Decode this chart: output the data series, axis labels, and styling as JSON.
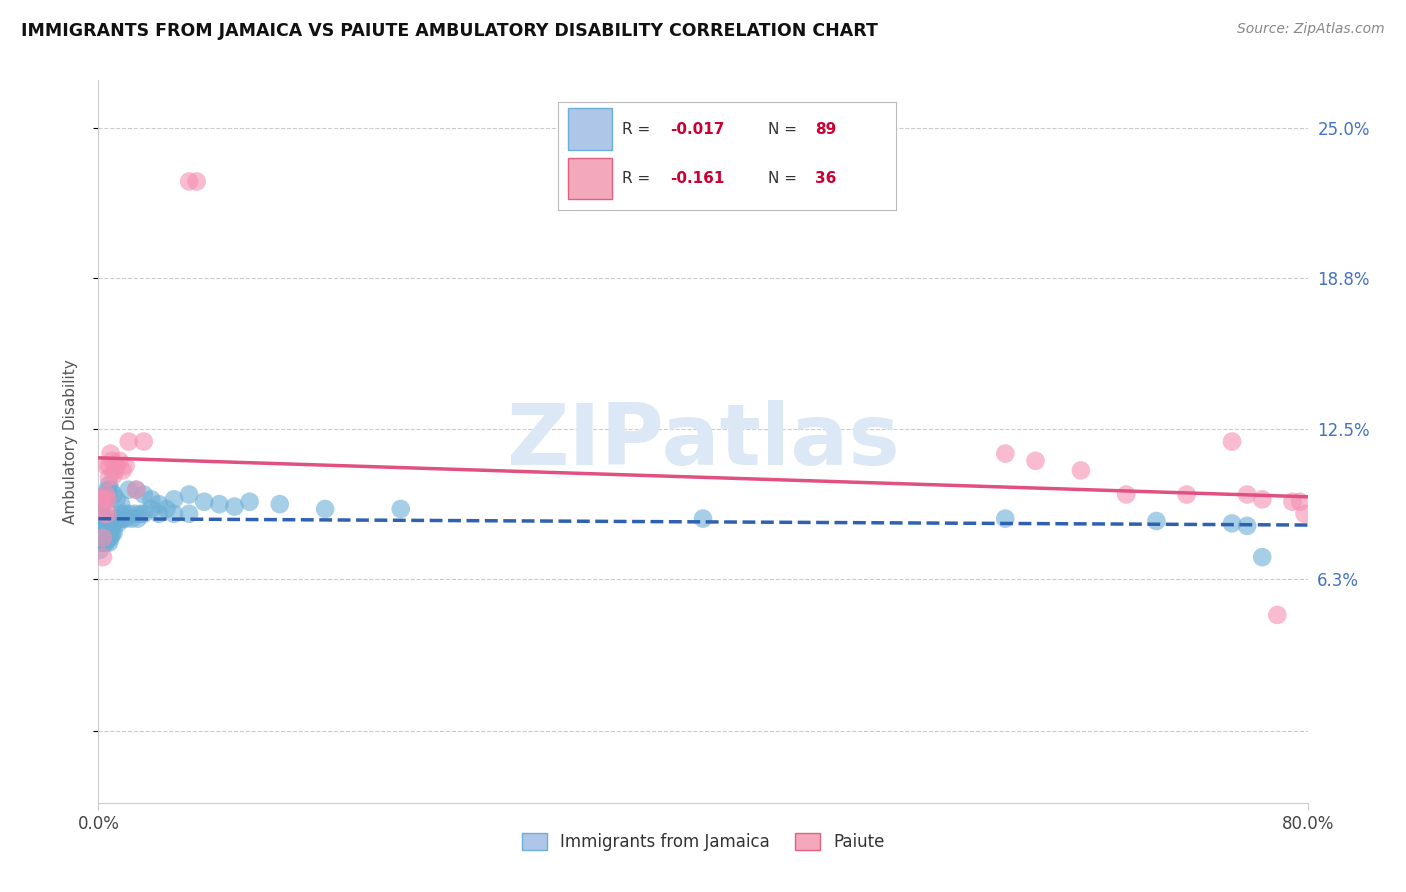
{
  "title": "IMMIGRANTS FROM JAMAICA VS PAIUTE AMBULATORY DISABILITY CORRELATION CHART",
  "source": "Source: ZipAtlas.com",
  "ylabel": "Ambulatory Disability",
  "color_jamaica": "#6baed6",
  "color_paiute": "#f48fb1",
  "line_color_jamaica": "#3060b0",
  "line_color_paiute": "#e05080",
  "watermark_color": "#dce8f5",
  "legend_color1": "#aec6e8",
  "legend_color2": "#f4a8bc",
  "ytick_positions": [
    0.0,
    0.063,
    0.125,
    0.188,
    0.25
  ],
  "ytick_labels": [
    "",
    "6.3%",
    "12.5%",
    "18.8%",
    "25.0%"
  ],
  "xlim": [
    0.0,
    0.8
  ],
  "ylim": [
    -0.03,
    0.27
  ],
  "jamaica_x": [
    0.001,
    0.001,
    0.001,
    0.002,
    0.002,
    0.002,
    0.002,
    0.002,
    0.002,
    0.003,
    0.003,
    0.003,
    0.003,
    0.003,
    0.003,
    0.003,
    0.004,
    0.004,
    0.004,
    0.004,
    0.004,
    0.004,
    0.005,
    0.005,
    0.005,
    0.005,
    0.005,
    0.006,
    0.006,
    0.006,
    0.007,
    0.007,
    0.007,
    0.007,
    0.008,
    0.008,
    0.008,
    0.009,
    0.009,
    0.01,
    0.01,
    0.011,
    0.012,
    0.013,
    0.014,
    0.015,
    0.016,
    0.017,
    0.018,
    0.02,
    0.022,
    0.024,
    0.026,
    0.028,
    0.03,
    0.035,
    0.04,
    0.045,
    0.05,
    0.06,
    0.003,
    0.004,
    0.005,
    0.006,
    0.007,
    0.008,
    0.01,
    0.012,
    0.015,
    0.02,
    0.025,
    0.03,
    0.035,
    0.04,
    0.05,
    0.06,
    0.07,
    0.08,
    0.09,
    0.1,
    0.12,
    0.15,
    0.2,
    0.4,
    0.6,
    0.7,
    0.75,
    0.76,
    0.77
  ],
  "jamaica_y": [
    0.075,
    0.08,
    0.082,
    0.078,
    0.08,
    0.083,
    0.085,
    0.088,
    0.09,
    0.078,
    0.08,
    0.082,
    0.083,
    0.085,
    0.087,
    0.09,
    0.078,
    0.08,
    0.082,
    0.084,
    0.086,
    0.088,
    0.078,
    0.08,
    0.082,
    0.085,
    0.087,
    0.08,
    0.082,
    0.086,
    0.078,
    0.08,
    0.082,
    0.086,
    0.08,
    0.082,
    0.086,
    0.082,
    0.086,
    0.082,
    0.086,
    0.086,
    0.088,
    0.086,
    0.088,
    0.09,
    0.088,
    0.09,
    0.088,
    0.09,
    0.088,
    0.09,
    0.088,
    0.09,
    0.09,
    0.092,
    0.09,
    0.092,
    0.09,
    0.09,
    0.094,
    0.096,
    0.098,
    0.1,
    0.102,
    0.1,
    0.098,
    0.096,
    0.094,
    0.1,
    0.1,
    0.098,
    0.096,
    0.094,
    0.096,
    0.098,
    0.095,
    0.094,
    0.093,
    0.095,
    0.094,
    0.092,
    0.092,
    0.088,
    0.088,
    0.087,
    0.086,
    0.085,
    0.072
  ],
  "paiute_x": [
    0.002,
    0.003,
    0.003,
    0.004,
    0.004,
    0.005,
    0.005,
    0.006,
    0.006,
    0.007,
    0.007,
    0.008,
    0.009,
    0.01,
    0.011,
    0.012,
    0.014,
    0.016,
    0.018,
    0.02,
    0.025,
    0.03,
    0.06,
    0.065,
    0.6,
    0.62,
    0.65,
    0.68,
    0.72,
    0.75,
    0.76,
    0.77,
    0.78,
    0.79,
    0.795,
    0.798
  ],
  "paiute_y": [
    0.096,
    0.08,
    0.072,
    0.096,
    0.09,
    0.098,
    0.11,
    0.09,
    0.096,
    0.105,
    0.11,
    0.115,
    0.112,
    0.106,
    0.108,
    0.11,
    0.112,
    0.108,
    0.11,
    0.12,
    0.1,
    0.12,
    0.228,
    0.228,
    0.115,
    0.112,
    0.108,
    0.098,
    0.098,
    0.12,
    0.098,
    0.096,
    0.048,
    0.095,
    0.095,
    0.09
  ]
}
